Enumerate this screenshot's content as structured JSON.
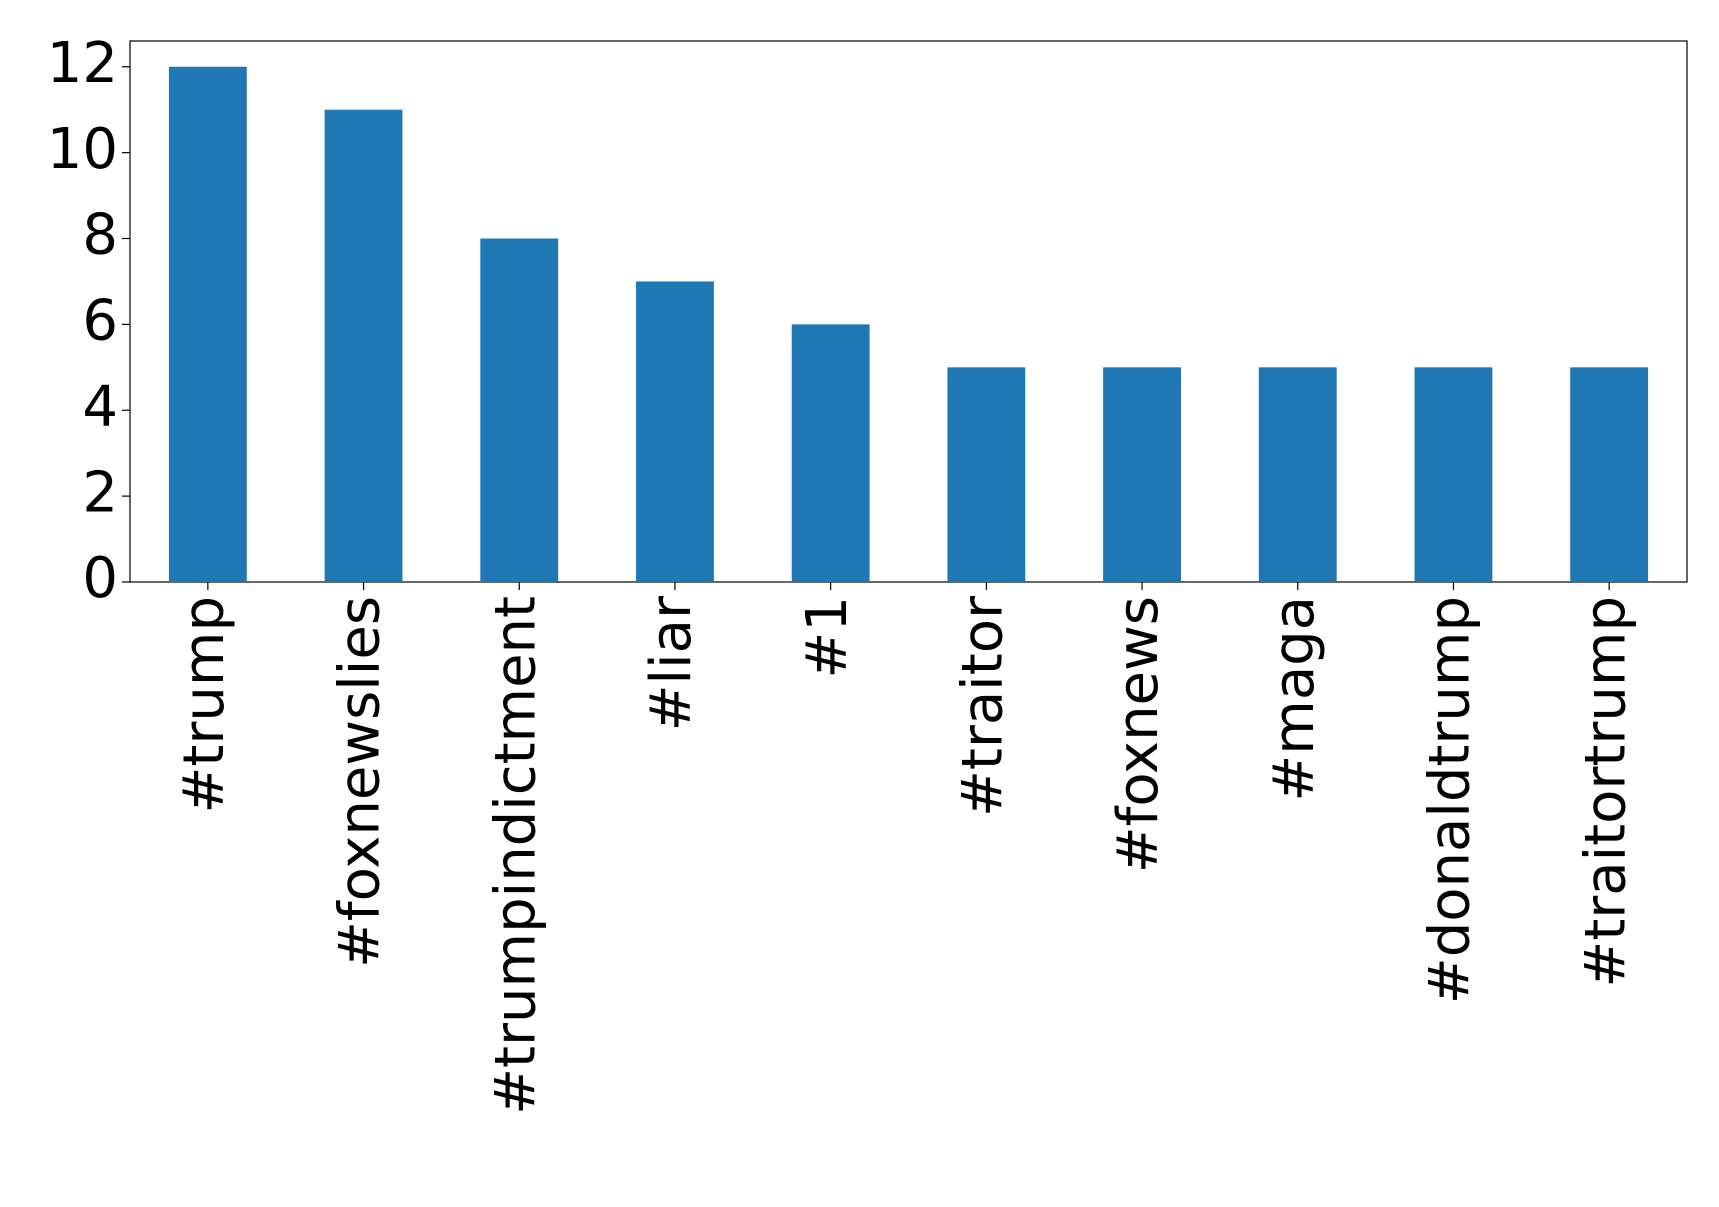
{
  "chart_data": {
    "type": "bar",
    "categories": [
      "#trump",
      "#foxnewslies",
      "#trumpindictment",
      "#liar",
      "#1",
      "#traitor",
      "#foxnews",
      "#maga",
      "#donaldtrump",
      "#traitortrump"
    ],
    "values": [
      12,
      11,
      8,
      7,
      6,
      5,
      5,
      5,
      5,
      5
    ],
    "color": "#1f77b4",
    "ylim": [
      0,
      12.6
    ],
    "yticks": [
      0,
      2,
      4,
      6,
      8,
      10,
      12
    ],
    "grid": false
  }
}
